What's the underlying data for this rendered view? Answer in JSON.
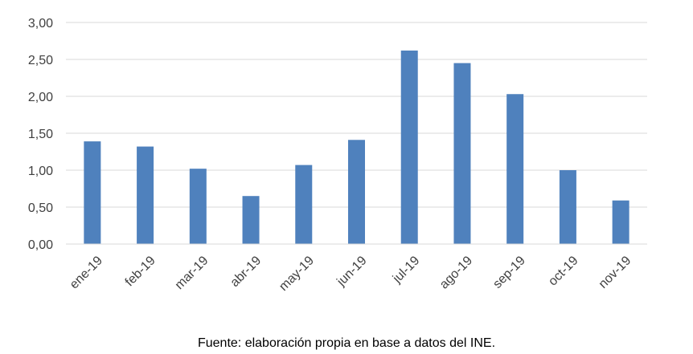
{
  "chart_data": {
    "type": "bar",
    "categories": [
      "ene-19",
      "feb-19",
      "mar-19",
      "abr-19",
      "may-19",
      "jun-19",
      "jul-19",
      "ago-19",
      "sep-19",
      "oct-19",
      "nov-19"
    ],
    "values": [
      1.39,
      1.32,
      1.02,
      0.65,
      1.07,
      1.41,
      2.62,
      2.45,
      2.03,
      1.0,
      0.59
    ],
    "y_ticks": [
      "0,00",
      "0,50",
      "1,00",
      "1,50",
      "2,00",
      "2,50",
      "3,00"
    ],
    "ylim": [
      0,
      3
    ],
    "grid": true,
    "bar_color": "#4F81BD"
  },
  "source_note": "Fuente: elaboración propia en base a datos del INE."
}
